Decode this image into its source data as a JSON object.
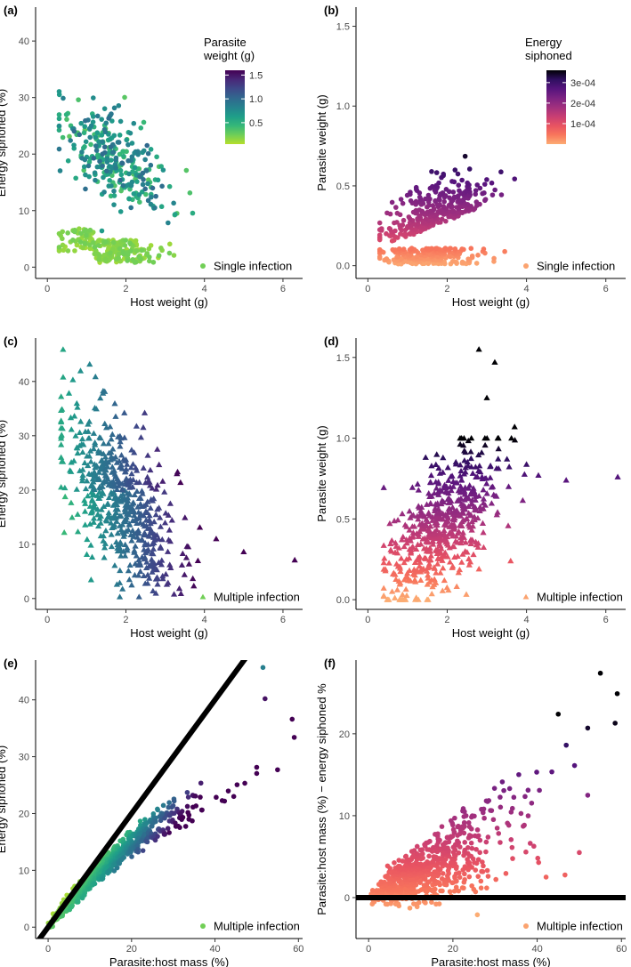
{
  "figure": {
    "description_note": "Six-panel scatter figure"
  },
  "colormaps": {
    "viridis": [
      "#b5de2b",
      "#6ece58",
      "#35b779",
      "#1f9e89",
      "#26828e",
      "#31688e",
      "#3e4989",
      "#482878",
      "#440154"
    ],
    "magma": [
      "#fcac73",
      "#f8765c",
      "#e85362",
      "#c83e73",
      "#a1307e",
      "#7c2382",
      "#56147d",
      "#2f0f60",
      "#000004"
    ]
  },
  "chart_data": [
    {
      "panel": "(a)",
      "type": "scatter",
      "marker": "circle",
      "colormap": "viridis",
      "xlabel": "Host weight (g)",
      "ylabel": "Energy siphoned (%)",
      "xlim": [
        -0.3,
        6.5
      ],
      "ylim": [
        -2,
        46
      ],
      "xticks": [
        0,
        2,
        4,
        6
      ],
      "yticks": [
        0,
        10,
        20,
        30,
        40
      ],
      "legend": "Single infection",
      "colorbar": {
        "title": [
          "Parasite",
          "weight (g)"
        ],
        "ticks": [
          0.5,
          1.0,
          1.5
        ],
        "tick_labels": [
          "0.5",
          "1.0",
          "1.5"
        ],
        "range": [
          0.05,
          1.6
        ],
        "colormap": "viridis"
      },
      "generator": {
        "kind": "single_energy",
        "n": 520,
        "seed": 11
      }
    },
    {
      "panel": "(b)",
      "type": "scatter",
      "marker": "circle",
      "colormap": "magma",
      "xlabel": "Host weight (g)",
      "ylabel": "Parasite weight (g)",
      "xlim": [
        -0.3,
        6.5
      ],
      "ylim": [
        -0.08,
        1.62
      ],
      "xticks": [
        0,
        2,
        4,
        6
      ],
      "yticks": [
        0.0,
        0.5,
        1.0,
        1.5
      ],
      "ytick_labels": [
        "0.0",
        "0.5",
        "1.0",
        "1.5"
      ],
      "legend": "Single infection",
      "colorbar": {
        "title": [
          "Energy",
          "siphoned"
        ],
        "ticks": [
          0.0001,
          0.0002,
          0.0003
        ],
        "tick_labels": [
          "1e-04",
          "2e-04",
          "3e-04"
        ],
        "range": [
          0.0,
          0.00036
        ],
        "colormap": "magma"
      },
      "generator": {
        "kind": "single_parasite",
        "n": 520,
        "seed": 23
      }
    },
    {
      "panel": "(c)",
      "type": "scatter",
      "marker": "triangle",
      "colormap": "viridis",
      "xlabel": "Host weight (g)",
      "ylabel": "Energy siphoned (%)",
      "xlim": [
        -0.3,
        6.5
      ],
      "ylim": [
        -2,
        48
      ],
      "xticks": [
        0,
        2,
        4,
        6
      ],
      "yticks": [
        0,
        10,
        20,
        30,
        40
      ],
      "legend": "Multiple infection",
      "generator": {
        "kind": "multi_energy",
        "n": 560,
        "seed": 37
      },
      "extra_points": [
        [
          6.3,
          7.1
        ],
        [
          5.0,
          8.6
        ],
        [
          4.3,
          11.0
        ],
        [
          2.8,
          27.5
        ],
        [
          3.3,
          23.0
        ],
        [
          0.4,
          45.9
        ],
        [
          0.65,
          40.3
        ]
      ]
    },
    {
      "panel": "(d)",
      "type": "scatter",
      "marker": "triangle",
      "colormap": "magma",
      "xlabel": "Host weight (g)",
      "ylabel": "Parasite weight (g)",
      "xlim": [
        -0.3,
        6.5
      ],
      "ylim": [
        -0.06,
        1.62
      ],
      "xticks": [
        0,
        2,
        4,
        6
      ],
      "yticks": [
        0.0,
        0.5,
        1.0,
        1.5
      ],
      "ytick_labels": [
        "0.0",
        "0.5",
        "1.0",
        "1.5"
      ],
      "legend": "Multiple infection",
      "generator": {
        "kind": "multi_parasite",
        "n": 560,
        "seed": 41
      },
      "extra_points": [
        [
          2.8,
          1.55
        ],
        [
          3.2,
          1.47
        ],
        [
          3.0,
          1.25
        ],
        [
          6.3,
          0.76
        ],
        [
          5.0,
          0.74
        ],
        [
          4.3,
          0.77
        ],
        [
          3.7,
          1.07
        ],
        [
          3.6,
          0.24
        ]
      ]
    },
    {
      "panel": "(e)",
      "type": "scatter",
      "marker": "circle",
      "colormap": "viridis",
      "xlabel": "Parasite:host mass (%)",
      "ylabel": "Energy siphoned (%)",
      "xlim": [
        -3,
        61
      ],
      "ylim": [
        -2,
        47
      ],
      "xticks": [
        0,
        20,
        40,
        60
      ],
      "yticks": [
        0,
        10,
        20,
        30,
        40
      ],
      "legend": "Multiple infection",
      "reference_line": {
        "slope": 1,
        "intercept": 0,
        "label": "1:1 line"
      },
      "generator": {
        "kind": "ratio_energy",
        "n": 720,
        "seed": 53
      },
      "extra_points": [
        [
          51.5,
          45.7
        ],
        [
          52,
          40.2
        ],
        [
          58.5,
          36.6
        ],
        [
          59,
          33.4
        ],
        [
          55,
          27.7
        ],
        [
          44.5,
          23.0
        ]
      ]
    },
    {
      "panel": "(f)",
      "type": "scatter",
      "marker": "circle",
      "colormap": "magma",
      "xlabel": "Parasite:host mass (%)",
      "ylabel": "Parasite:host mass (%) − energy siphoned %",
      "xlim": [
        -3,
        61
      ],
      "ylim": [
        -5,
        29
      ],
      "xticks": [
        0,
        20,
        40,
        60
      ],
      "yticks": [
        0,
        10,
        20
      ],
      "legend": "Multiple infection",
      "reference_line": {
        "slope": 0,
        "intercept": 0,
        "label": "zero line"
      },
      "generator": {
        "kind": "ratio_diff",
        "n": 720,
        "seed": 67
      },
      "extra_points": [
        [
          55,
          27.4
        ],
        [
          59,
          24.9
        ],
        [
          45,
          22.4
        ],
        [
          52,
          20.7
        ],
        [
          58.5,
          21.3
        ],
        [
          50,
          5.5
        ],
        [
          52,
          12.5
        ],
        [
          25.8,
          -2.1
        ]
      ]
    }
  ]
}
